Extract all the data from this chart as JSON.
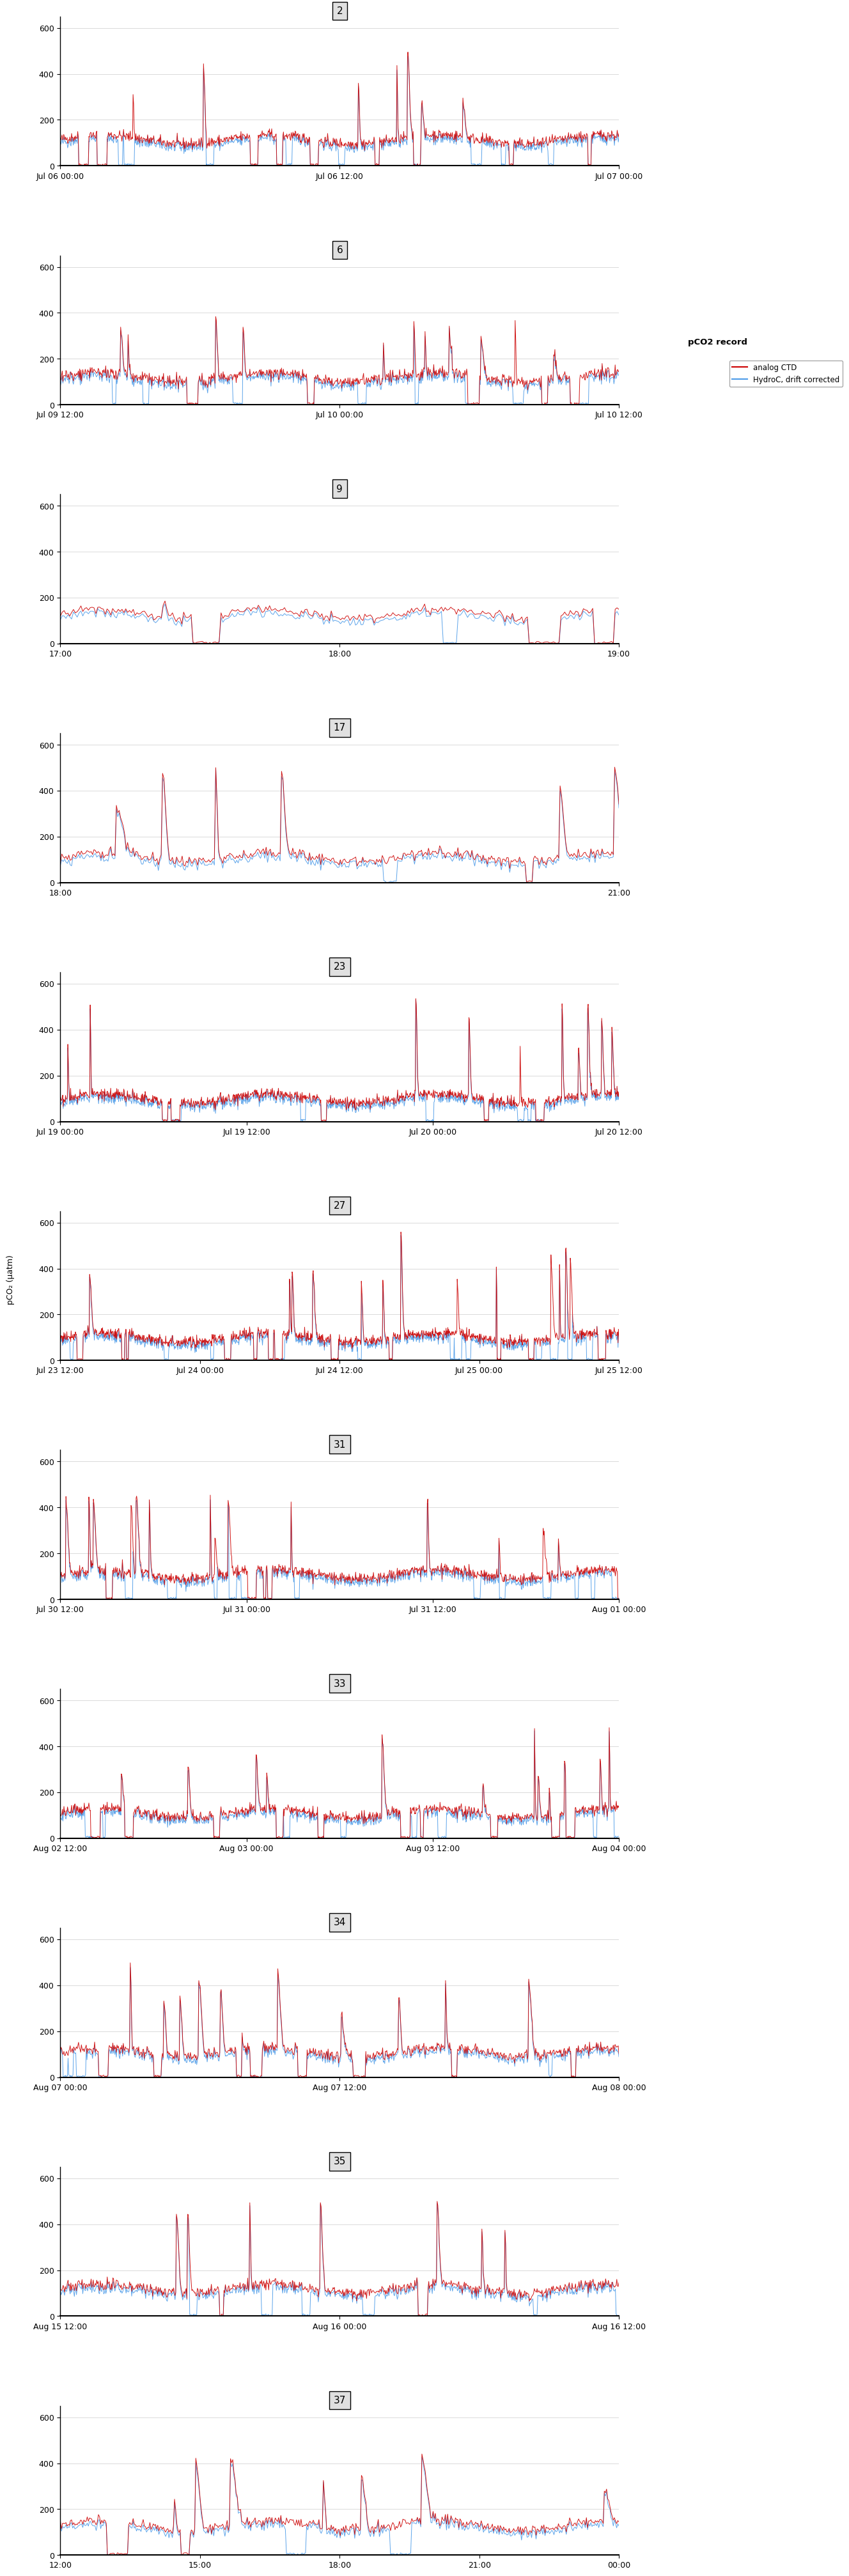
{
  "panels": [
    {
      "id": "2",
      "xlabels": [
        "Jul 06 00:00",
        "Jul 06 12:00",
        "Jul 07 00:00"
      ]
    },
    {
      "id": "6",
      "xlabels": [
        "Jul 09 12:00",
        "Jul 10 00:00",
        "Jul 10 12:00"
      ]
    },
    {
      "id": "9",
      "xlabels": [
        "17:00",
        "18:00",
        "19:00"
      ]
    },
    {
      "id": "17",
      "xlabels": [
        "18:00",
        "21:00"
      ]
    },
    {
      "id": "23",
      "xlabels": [
        "Jul 19 00:00",
        "Jul 19 12:00",
        "Jul 20 00:00",
        "Jul 20 12:00"
      ]
    },
    {
      "id": "27",
      "xlabels": [
        "Jul 23 12:00",
        "Jul 24 00:00",
        "Jul 24 12:00",
        "Jul 25 00:00",
        "Jul 25 12:00"
      ]
    },
    {
      "id": "31",
      "xlabels": [
        "Jul 30 12:00",
        "Jul 31 00:00",
        "Jul 31 12:00",
        "Aug 01 00:00"
      ]
    },
    {
      "id": "33",
      "xlabels": [
        "Aug 02 12:00",
        "Aug 03 00:00",
        "Aug 03 12:00",
        "Aug 04 00:00"
      ]
    },
    {
      "id": "34",
      "xlabels": [
        "Aug 07 00:00",
        "Aug 07 12:00",
        "Aug 08 00:00"
      ]
    },
    {
      "id": "35",
      "xlabels": [
        "Aug 15 12:00",
        "Aug 16 00:00",
        "Aug 16 12:00"
      ]
    },
    {
      "id": "37",
      "xlabels": [
        "12:00",
        "15:00",
        "18:00",
        "21:00",
        "00:00"
      ]
    }
  ],
  "ylim": [
    0,
    650
  ],
  "yticks": [
    0,
    200,
    400,
    600
  ],
  "ylabel": "pCO₂ (µatm)",
  "color_analog": "#CC0000",
  "color_hydro": "#4C9BE8",
  "legend_title": "pCO2 record",
  "legend_labels": [
    "analog CTD",
    "HydroC, drift corrected"
  ],
  "background_color": "#FFFFFF",
  "panel_header_color": "#E0E0E0",
  "grid_color": "#CCCCCC",
  "title_fontsize": 11,
  "axis_fontsize": 9,
  "ylabel_fontsize": 9
}
